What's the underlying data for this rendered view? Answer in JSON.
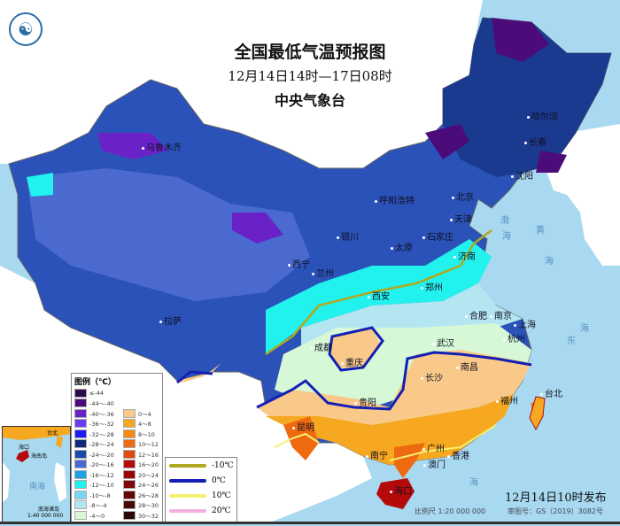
{
  "header": {
    "title": "全国最低气温预报图",
    "period": "12月14日14时—17日08时",
    "agency": "中央气象台",
    "logo_icon": "cma-logo-icon"
  },
  "cities": [
    "乌鲁木齐",
    "呼和浩特",
    "北京",
    "天津",
    "石家庄",
    "太原",
    "济南",
    "郑州",
    "银川",
    "西宁",
    "兰州",
    "西安",
    "哈尔滨",
    "长春",
    "沈阳",
    "合肥",
    "南京",
    "上海",
    "杭州",
    "武汉",
    "南昌",
    "长沙",
    "成都",
    "重庆",
    "贵阳",
    "昆明",
    "拉萨",
    "南宁",
    "广州",
    "香港",
    "澳门",
    "福州",
    "台北",
    "海口"
  ],
  "seas": [
    "渤",
    "海",
    "黄",
    "海",
    "东",
    "海",
    "海"
  ],
  "legend": {
    "title": "图例（℃）",
    "cold": [
      {
        "label": "≤-44",
        "color": "#2a0a4a"
      },
      {
        "label": "-44～-40",
        "color": "#4b0c7a"
      },
      {
        "label": "-40～-36",
        "color": "#6a22c8"
      },
      {
        "label": "-36～-32",
        "color": "#6a3cf0"
      },
      {
        "label": "-32～-28",
        "color": "#1a1ef0"
      },
      {
        "label": "-28～-24",
        "color": "#0c2a78"
      },
      {
        "label": "-24～-20",
        "color": "#1c4aa8"
      },
      {
        "label": "-20～-16",
        "color": "#4a6ad0"
      },
      {
        "label": "-16～-12",
        "color": "#1fa2e0"
      },
      {
        "label": "-12～-10",
        "color": "#22f2ee"
      },
      {
        "label": "-10～-8",
        "color": "#78d8f4"
      },
      {
        "label": "-8～-4",
        "color": "#b4e6f2"
      },
      {
        "label": "-4～0",
        "color": "#d6f8d6"
      }
    ],
    "warm": [
      {
        "label": "0～4",
        "color": "#f9c98a"
      },
      {
        "label": "4～8",
        "color": "#f6a820"
      },
      {
        "label": "8～10",
        "color": "#f68a12"
      },
      {
        "label": "10～12",
        "color": "#ee6a10"
      },
      {
        "label": "12～16",
        "color": "#e04a10"
      },
      {
        "label": "16～20",
        "color": "#b40a0a"
      },
      {
        "label": "20～24",
        "color": "#9a0606"
      },
      {
        "label": "24～26",
        "color": "#800808"
      },
      {
        "label": "26～28",
        "color": "#640606"
      },
      {
        "label": "28～30",
        "color": "#480808"
      },
      {
        "label": "30～32",
        "color": "#2c0606"
      }
    ],
    "isotherms": [
      {
        "label": "-10℃",
        "color": "#b0a820"
      },
      {
        "label": "0℃",
        "color": "#1420b4"
      },
      {
        "label": "10℃",
        "color": "#f4f070"
      },
      {
        "label": "20℃",
        "color": "#f4b0dc"
      }
    ]
  },
  "inset": {
    "labels": [
      "海口",
      "海南岛",
      "南海",
      "台北",
      "南海诸岛"
    ],
    "scale": "1:40 000 000"
  },
  "footer": {
    "issued": "12月14日10时发布",
    "scale": "比例尺 1:20 000 000",
    "approval": "审图号：GS（2019）3082号"
  }
}
